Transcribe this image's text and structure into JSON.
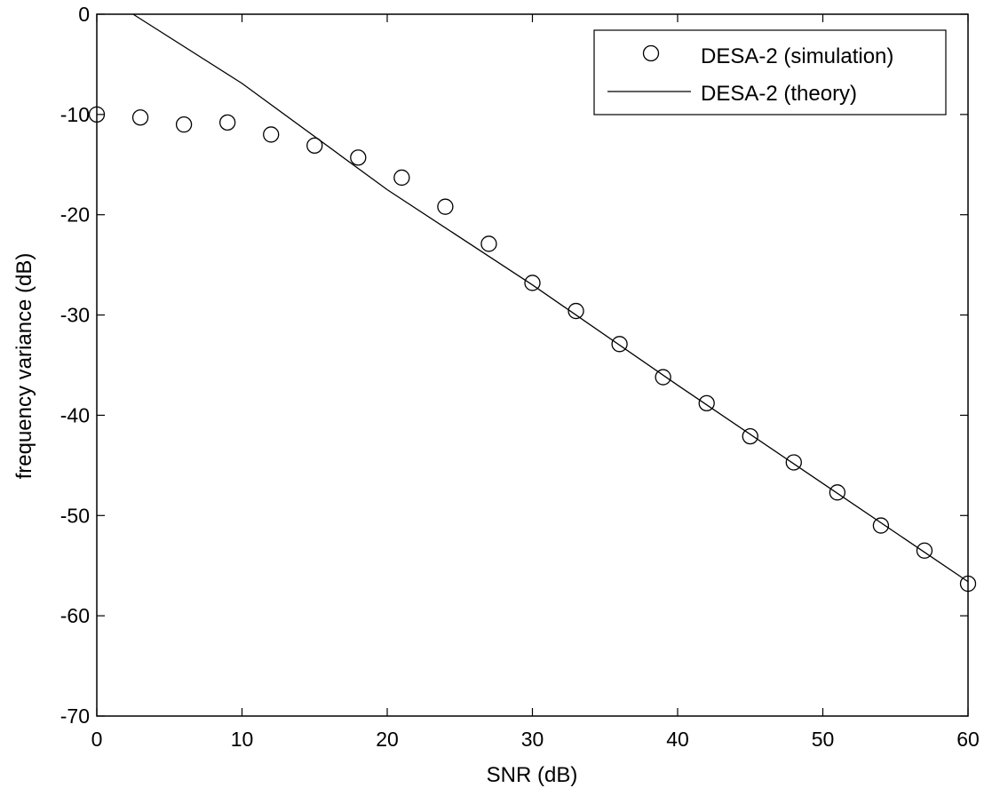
{
  "chart_data": {
    "type": "line",
    "xlabel": "SNR (dB)",
    "ylabel": "frequency variance (dB)",
    "xlim": [
      0,
      60
    ],
    "ylim": [
      -70,
      0
    ],
    "xticks": [
      "0",
      "10",
      "20",
      "30",
      "40",
      "50",
      "60"
    ],
    "yticks": [
      "0",
      "-10",
      "-20",
      "-30",
      "-40",
      "-50",
      "-60",
      "-70"
    ],
    "grid": false,
    "legend_position": "top-right",
    "series": [
      {
        "name": "DESA-2 (simulation)",
        "style": "markers-circle",
        "color": "#000000",
        "x": [
          0,
          3,
          6,
          9,
          12,
          15,
          18,
          21,
          24,
          27,
          30,
          33,
          36,
          39,
          42,
          45,
          48,
          51,
          54,
          57,
          60
        ],
        "y": [
          -10.0,
          -10.3,
          -11.0,
          -10.8,
          -12.0,
          -13.1,
          -14.3,
          -16.3,
          -19.2,
          -22.9,
          -26.8,
          -29.6,
          -32.9,
          -36.2,
          -38.8,
          -42.1,
          -44.7,
          -47.7,
          -51.0,
          -53.5,
          -56.8
        ]
      },
      {
        "name": "DESA-2 (theory)",
        "style": "line",
        "color": "#000000",
        "x": [
          2.5,
          10,
          20,
          30,
          40,
          50,
          60
        ],
        "y": [
          0.0,
          -6.9,
          -17.5,
          -27.0,
          -37.0,
          -46.8,
          -56.6
        ]
      }
    ]
  }
}
